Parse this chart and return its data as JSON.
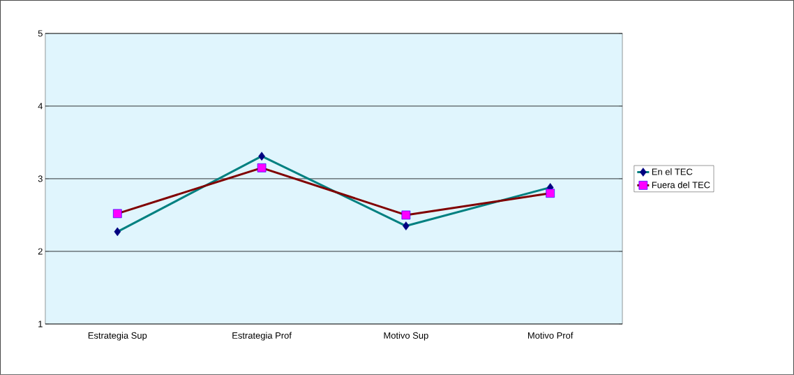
{
  "chart_data": {
    "type": "line",
    "categories": [
      "Estrategia Sup",
      "Estrategia Prof",
      "Motivo Sup",
      "Motivo Prof"
    ],
    "series": [
      {
        "name": "En el TEC",
        "color": "#008080",
        "marker": "diamond",
        "values": [
          2.27,
          3.31,
          2.35,
          2.88
        ]
      },
      {
        "name": "Fuera del TEC",
        "color": "#800000",
        "marker": "square",
        "values": [
          2.52,
          3.15,
          2.5,
          2.8
        ]
      }
    ],
    "ylim": [
      1,
      5
    ],
    "yticks": [
      1,
      2,
      3,
      4,
      5
    ],
    "grid": "y",
    "legend": "right"
  }
}
